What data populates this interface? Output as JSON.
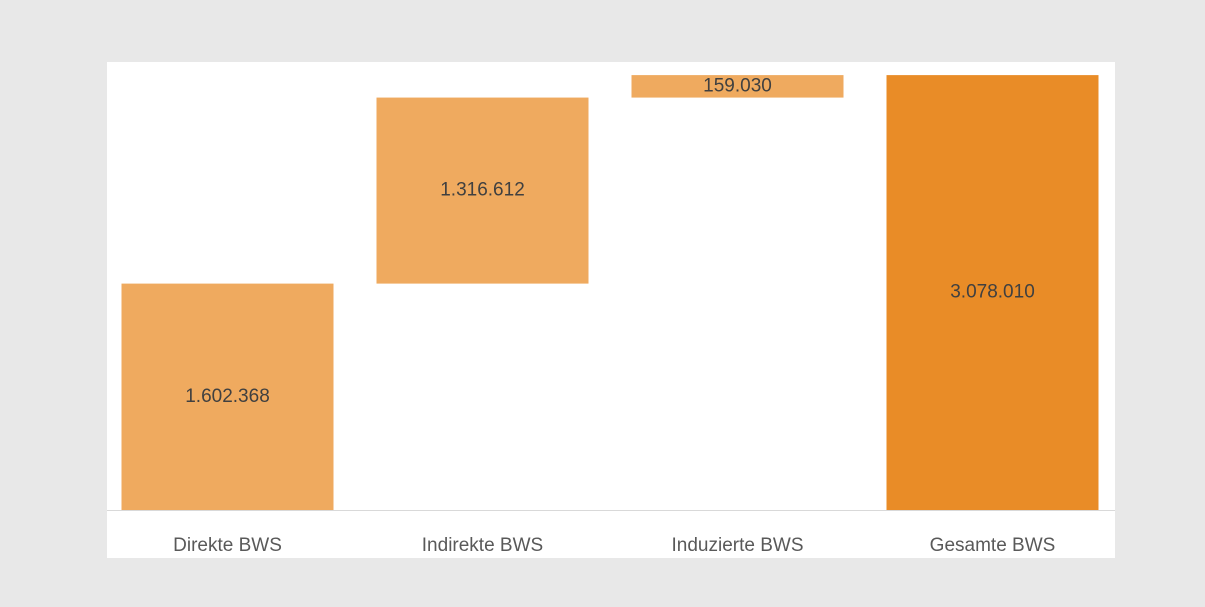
{
  "chart_data": {
    "type": "waterfall",
    "categories": [
      "Direkte BWS",
      "Indirekte BWS",
      "Induzierte BWS",
      "Gesamte BWS"
    ],
    "values": [
      1602368,
      1316612,
      159030,
      3078010
    ],
    "value_labels": [
      "1.602.368",
      "1.316.612",
      "159.030",
      "3.078.010"
    ],
    "totals": [
      false,
      false,
      false,
      true
    ],
    "increase_color": "#efaa5f",
    "total_color": "#e98c27",
    "ylim": [
      0,
      3100000
    ],
    "grid": false
  }
}
